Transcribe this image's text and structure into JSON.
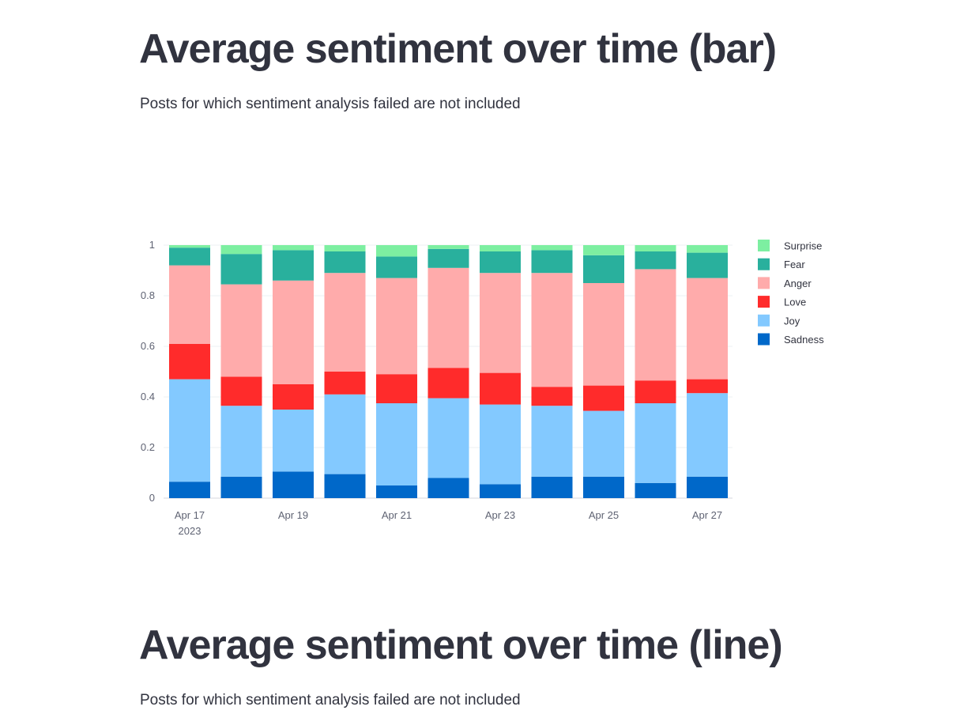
{
  "sections": [
    {
      "title": "Average sentiment over time (bar)",
      "caption": "Posts for which sentiment analysis failed are not included"
    },
    {
      "title": "Average sentiment over time (line)",
      "caption": "Posts for which sentiment analysis failed are not included"
    }
  ],
  "chart_data": {
    "type": "bar",
    "stacked": true,
    "categories": [
      "2023-04-17",
      "2023-04-18",
      "2023-04-19",
      "2023-04-20",
      "2023-04-21",
      "2023-04-22",
      "2023-04-23",
      "2023-04-24",
      "2023-04-25",
      "2023-04-26",
      "2023-04-27"
    ],
    "x_tick_labels": [
      {
        "index": 0,
        "lines": [
          "Apr 17",
          "2023"
        ]
      },
      {
        "index": 2,
        "lines": [
          "Apr 19"
        ]
      },
      {
        "index": 4,
        "lines": [
          "Apr 21"
        ]
      },
      {
        "index": 6,
        "lines": [
          "Apr 23"
        ]
      },
      {
        "index": 8,
        "lines": [
          "Apr 25"
        ]
      },
      {
        "index": 10,
        "lines": [
          "Apr 27"
        ]
      }
    ],
    "y_ticks": [
      0,
      0.2,
      0.4,
      0.6,
      0.8,
      1
    ],
    "y_tick_labels": [
      "0",
      "0.2",
      "0.4",
      "0.6",
      "0.8",
      "1"
    ],
    "ylim": [
      0,
      1
    ],
    "grid": true,
    "legend_position": "right",
    "series": [
      {
        "name": "Sadness",
        "color": "#0068c9",
        "values": [
          0.065,
          0.085,
          0.105,
          0.095,
          0.05,
          0.08,
          0.055,
          0.085,
          0.085,
          0.06,
          0.085
        ]
      },
      {
        "name": "Joy",
        "color": "#83c9ff",
        "values": [
          0.405,
          0.28,
          0.245,
          0.315,
          0.325,
          0.315,
          0.315,
          0.28,
          0.26,
          0.315,
          0.33
        ]
      },
      {
        "name": "Love",
        "color": "#ff2b2b",
        "values": [
          0.14,
          0.115,
          0.1,
          0.09,
          0.115,
          0.12,
          0.125,
          0.075,
          0.1,
          0.09,
          0.055
        ]
      },
      {
        "name": "Anger",
        "color": "#ffabab",
        "values": [
          0.31,
          0.365,
          0.41,
          0.39,
          0.38,
          0.395,
          0.395,
          0.45,
          0.405,
          0.44,
          0.4
        ]
      },
      {
        "name": "Fear",
        "color": "#29b09d",
        "values": [
          0.07,
          0.12,
          0.12,
          0.085,
          0.085,
          0.075,
          0.085,
          0.09,
          0.11,
          0.07,
          0.1
        ]
      },
      {
        "name": "Surprise",
        "color": "#7defa1",
        "values": [
          0.01,
          0.035,
          0.02,
          0.025,
          0.045,
          0.015,
          0.025,
          0.02,
          0.04,
          0.025,
          0.03
        ]
      }
    ]
  }
}
